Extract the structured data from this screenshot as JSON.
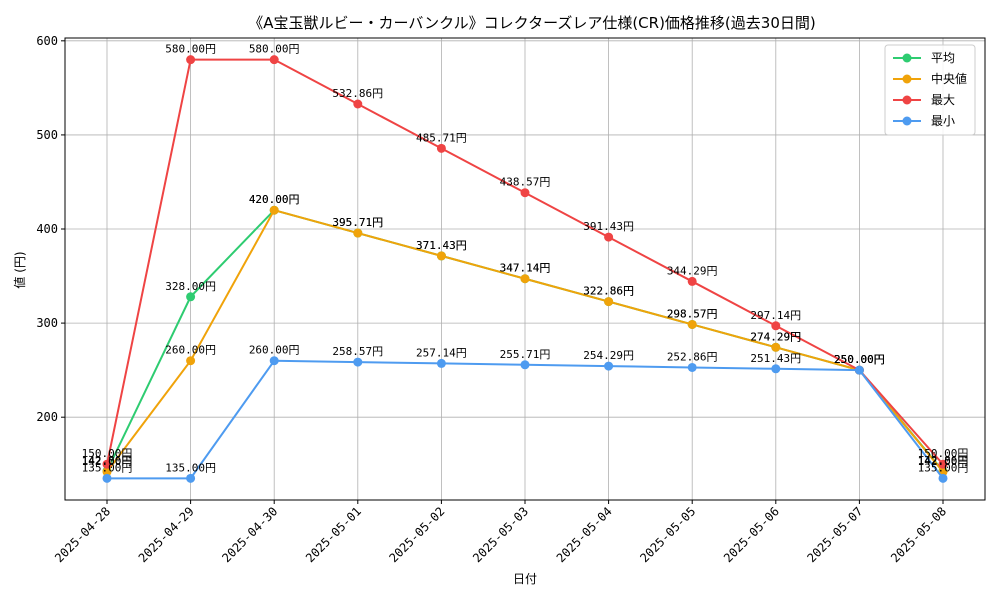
{
  "chart_data": {
    "type": "line",
    "title": "《A宝玉獣ルビー・カーバンクル》コレクターズレア仕様(CR)価格推移(過去30日間)",
    "xlabel": "日付",
    "ylabel": "値 (円)",
    "categories": [
      "2025-04-28",
      "2025-04-29",
      "2025-04-30",
      "2025-05-01",
      "2025-05-02",
      "2025-05-03",
      "2025-05-04",
      "2025-05-05",
      "2025-05-06",
      "2025-05-07",
      "2025-05-08"
    ],
    "ylim": [
      112,
      603
    ],
    "yticks": [
      200,
      300,
      400,
      500,
      600
    ],
    "grid": true,
    "legend_position": "top-right",
    "series": [
      {
        "name": "平均",
        "color": "#2ecc71",
        "values": [
          142.86,
          328.0,
          420.0,
          395.71,
          371.43,
          347.14,
          322.86,
          298.57,
          274.29,
          250.0,
          142.86
        ],
        "labels": [
          "142.86円",
          "328.00円",
          "420.00円",
          "395.71円",
          "371.43円",
          "347.14円",
          "322.86円",
          "298.57円",
          "274.29円",
          "250.00円",
          "142.86円"
        ]
      },
      {
        "name": "中央値",
        "color": "#f0a30a",
        "values": [
          142.0,
          260.0,
          420.0,
          395.71,
          371.43,
          347.14,
          322.86,
          298.57,
          274.29,
          250.0,
          142.0
        ],
        "labels": [
          "142.00円",
          "260.00円",
          "420.00円",
          "395.71円",
          "371.43円",
          "347.14円",
          "322.86円",
          "298.57円",
          "274.29円",
          "250.00円",
          "142.00円"
        ]
      },
      {
        "name": "最大",
        "color": "#ef4444",
        "values": [
          150.0,
          580.0,
          580.0,
          532.86,
          485.71,
          438.57,
          391.43,
          344.29,
          297.14,
          250.0,
          150.0
        ],
        "labels": [
          "150.00円",
          "580.00円",
          "580.00円",
          "532.86円",
          "485.71円",
          "438.57円",
          "391.43円",
          "344.29円",
          "297.14円",
          "250.00円",
          "150.00円"
        ]
      },
      {
        "name": "最小",
        "color": "#4e9bf0",
        "values": [
          135.0,
          135.0,
          260.0,
          258.57,
          257.14,
          255.71,
          254.29,
          252.86,
          251.43,
          250.0,
          135.0
        ],
        "labels": [
          "135.00円",
          "135.00円",
          "260.00円",
          "258.57円",
          "257.14円",
          "255.71円",
          "254.29円",
          "252.86円",
          "251.43円",
          "250.00円",
          "135.00円"
        ]
      }
    ]
  }
}
